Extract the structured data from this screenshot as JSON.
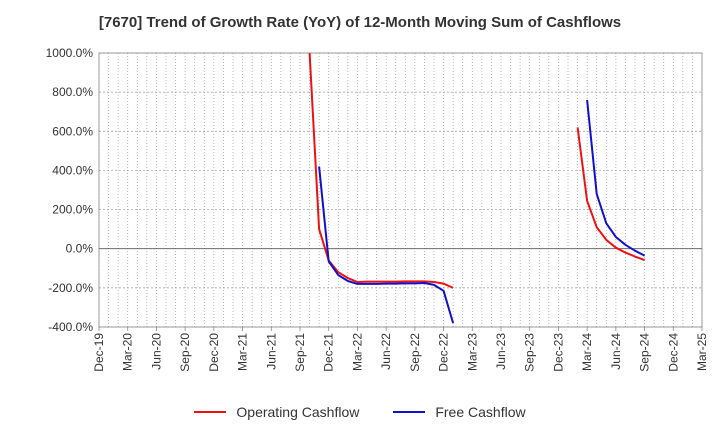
{
  "chart_data": {
    "type": "line",
    "title": "[7670]  Trend of Growth Rate (YoY) of 12-Month Moving Sum of Cashflows",
    "xlabel": "",
    "ylabel": "",
    "x_tick_labels": [
      "Dec-19",
      "Mar-20",
      "Jun-20",
      "Sep-20",
      "Dec-20",
      "Mar-21",
      "Jun-21",
      "Sep-21",
      "Dec-21",
      "Mar-22",
      "Jun-22",
      "Sep-22",
      "Dec-22",
      "Mar-23",
      "Jun-23",
      "Sep-23",
      "Dec-23",
      "Mar-24",
      "Jun-24",
      "Sep-24",
      "Dec-24",
      "Mar-25"
    ],
    "y_tick_labels": [
      "1000.0%",
      "800.0%",
      "600.0%",
      "400.0%",
      "200.0%",
      "0.0%",
      "-200.0%",
      "-400.0%"
    ],
    "ylim": [
      -400,
      1000
    ],
    "grid": true,
    "legend_position": "bottom",
    "series": [
      {
        "name": "Operating Cashflow",
        "color": "#ee1111",
        "points": [
          [
            "Oct-21",
            1000
          ],
          [
            "Nov-21",
            100
          ],
          [
            "Dec-21",
            -60
          ],
          [
            "Jan-22",
            -120
          ],
          [
            "Feb-22",
            -150
          ],
          [
            "Mar-22",
            -170
          ],
          [
            "Apr-22",
            -168
          ],
          [
            "May-22",
            -168
          ],
          [
            "Jun-22",
            -168
          ],
          [
            "Jul-22",
            -168
          ],
          [
            "Aug-22",
            -167
          ],
          [
            "Sep-22",
            -167
          ],
          [
            "Oct-22",
            -167
          ],
          [
            "Nov-22",
            -170
          ],
          [
            "Dec-22",
            -178
          ],
          [
            "Jan-23",
            -200
          ],
          [
            "Feb-24",
            620
          ],
          [
            "Mar-24",
            245
          ],
          [
            "Apr-24",
            110
          ],
          [
            "May-24",
            45
          ],
          [
            "Jun-24",
            5
          ],
          [
            "Jul-24",
            -20
          ],
          [
            "Aug-24",
            -40
          ],
          [
            "Sep-24",
            -58
          ]
        ]
      },
      {
        "name": "Free Cashflow",
        "color": "#1111cc",
        "points": [
          [
            "Nov-21",
            420
          ],
          [
            "Dec-21",
            -65
          ],
          [
            "Jan-22",
            -135
          ],
          [
            "Feb-22",
            -165
          ],
          [
            "Mar-22",
            -180
          ],
          [
            "Apr-22",
            -180
          ],
          [
            "May-22",
            -180
          ],
          [
            "Jun-22",
            -178
          ],
          [
            "Jul-22",
            -178
          ],
          [
            "Aug-22",
            -177
          ],
          [
            "Sep-22",
            -177
          ],
          [
            "Oct-22",
            -175
          ],
          [
            "Nov-22",
            -185
          ],
          [
            "Dec-22",
            -215
          ],
          [
            "Jan-23",
            -380
          ],
          [
            "Mar-24",
            760
          ],
          [
            "Apr-24",
            280
          ],
          [
            "May-24",
            130
          ],
          [
            "Jun-24",
            60
          ],
          [
            "Jul-24",
            20
          ],
          [
            "Aug-24",
            -10
          ],
          [
            "Sep-24",
            -35
          ]
        ]
      }
    ]
  }
}
